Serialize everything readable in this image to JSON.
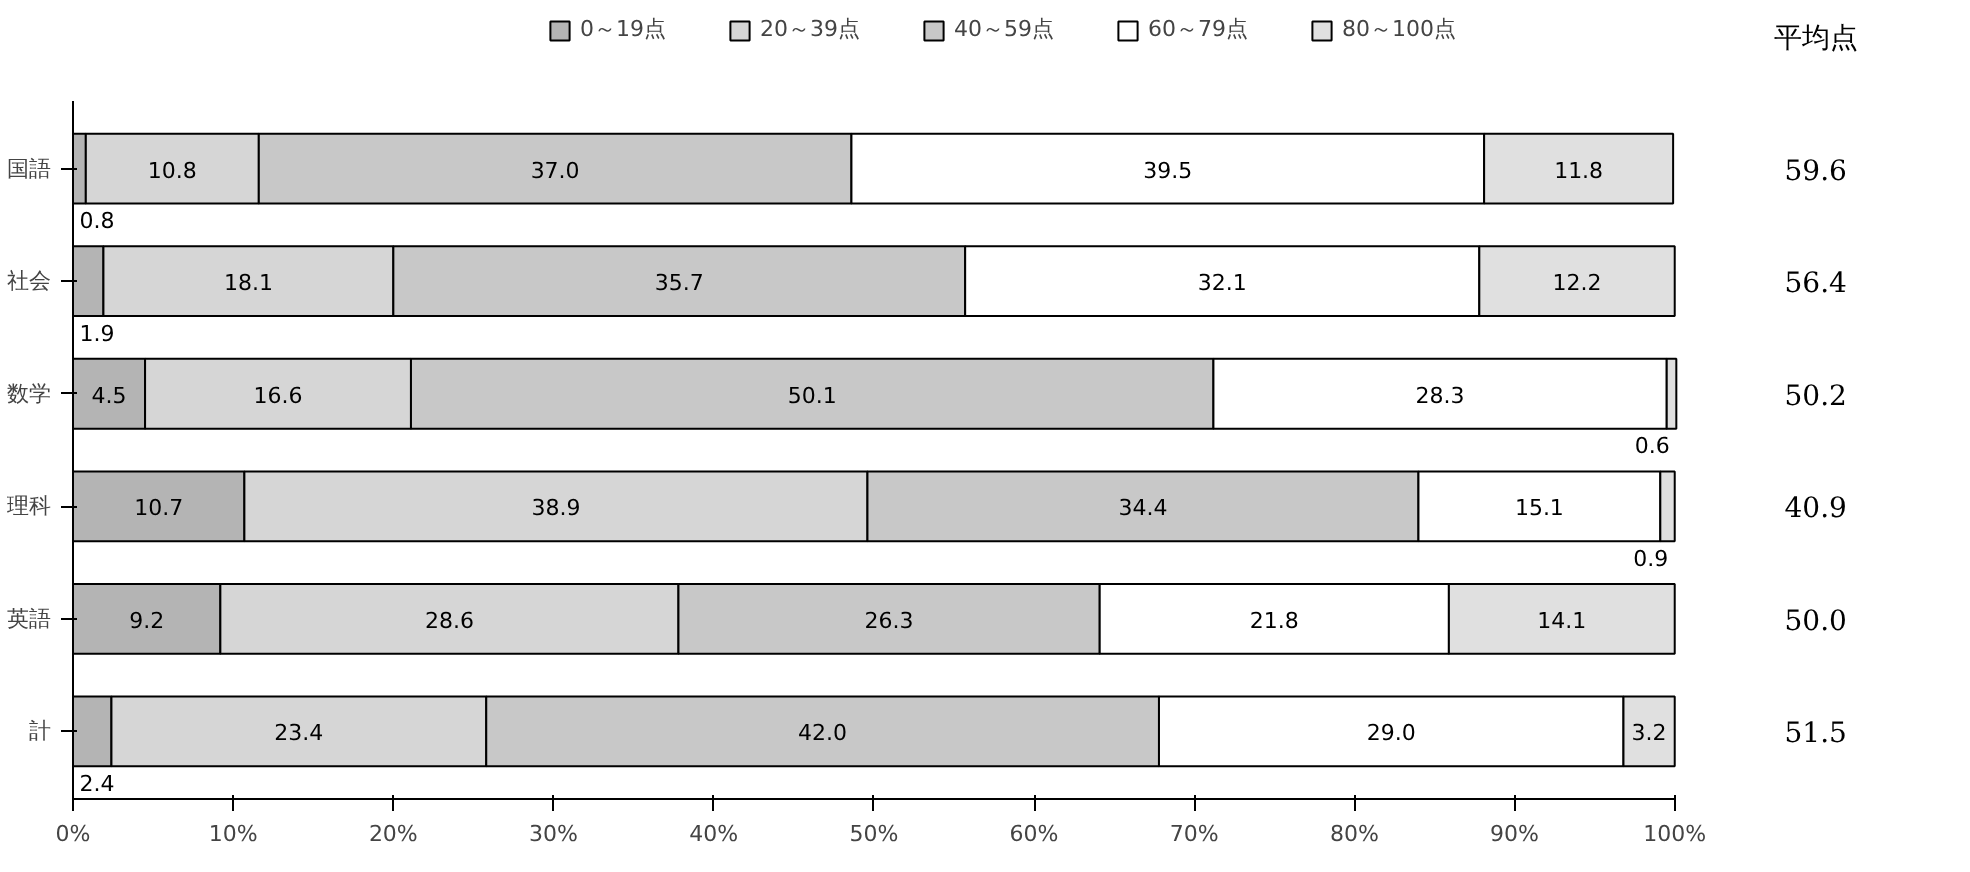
{
  "chart_data": {
    "type": "bar",
    "orientation": "horizontal",
    "stacked": true,
    "categories": [
      "国語",
      "社会",
      "数学",
      "理科",
      "英語",
      "計"
    ],
    "series": [
      {
        "name": "0～19点",
        "color": "#b4b4b4",
        "values": [
          0.8,
          1.9,
          4.5,
          10.7,
          9.2,
          2.4
        ],
        "value_labels": [
          "0.8",
          "1.9",
          "4.5",
          "10.7",
          "9.2",
          "2.4"
        ]
      },
      {
        "name": "20～39点",
        "color": "#d6d6d6",
        "values": [
          10.8,
          18.1,
          16.6,
          38.9,
          28.6,
          23.4
        ],
        "value_labels": [
          "10.8",
          "18.1",
          "16.6",
          "38.9",
          "28.6",
          "23.4"
        ]
      },
      {
        "name": "40～59点",
        "color": "#c8c8c8",
        "values": [
          37.0,
          35.7,
          50.1,
          34.4,
          26.3,
          42.0
        ],
        "value_labels": [
          "37.0",
          "35.7",
          "50.1",
          "34.4",
          "26.3",
          "42.0"
        ]
      },
      {
        "name": "60～79点",
        "color": "#ffffff",
        "values": [
          39.5,
          32.1,
          28.3,
          15.1,
          21.8,
          29.0
        ],
        "value_labels": [
          "39.5",
          "32.1",
          "28.3",
          "15.1",
          "21.8",
          "29.0"
        ]
      },
      {
        "name": "80～100点",
        "color": "#e0e0e0",
        "values": [
          11.8,
          12.2,
          0.6,
          0.9,
          14.1,
          3.2
        ],
        "value_labels": [
          "11.8",
          "12.2",
          "0.6",
          "0.9",
          "14.1",
          "3.2"
        ]
      }
    ],
    "xlim": [
      0,
      100
    ],
    "xticks": [
      {
        "value": 0,
        "label": "0%"
      },
      {
        "value": 10,
        "label": "10%"
      },
      {
        "value": 20,
        "label": "20%"
      },
      {
        "value": 30,
        "label": "30%"
      },
      {
        "value": 40,
        "label": "40%"
      },
      {
        "value": 50,
        "label": "50%"
      },
      {
        "value": 60,
        "label": "60%"
      },
      {
        "value": 70,
        "label": "70%"
      },
      {
        "value": 80,
        "label": "80%"
      },
      {
        "value": 90,
        "label": "90%"
      },
      {
        "value": 100,
        "label": "100%"
      }
    ],
    "legend": "top",
    "annotations": [
      "平均点",
      "59.6",
      "56.4",
      "50.2",
      "40.9",
      "50.0",
      "51.5"
    ]
  }
}
